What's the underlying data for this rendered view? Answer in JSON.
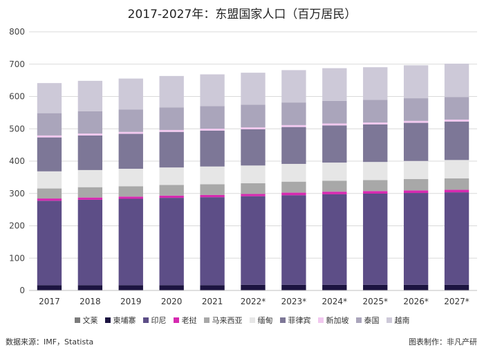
{
  "chart_data": {
    "type": "bar",
    "stacked": true,
    "title": "2017-2027年：东盟国家人口（百万居民）",
    "xlabel": "",
    "ylabel": "",
    "ylim": [
      0,
      800
    ],
    "yticks": [
      0,
      100,
      200,
      300,
      400,
      500,
      600,
      700,
      800
    ],
    "grid": true,
    "legend_position": "bottom",
    "categories": [
      "2017",
      "2018",
      "2019",
      "2020",
      "2021",
      "2022*",
      "2023*",
      "2024*",
      "2025*",
      "2026*",
      "2027*"
    ],
    "series": [
      {
        "name": "文莱",
        "color": "#7b7b7b",
        "values": [
          0.4,
          0.4,
          0.4,
          0.4,
          0.4,
          0.5,
          0.5,
          0.5,
          0.5,
          0.5,
          0.5
        ]
      },
      {
        "name": "柬埔寨",
        "color": "#1c1440",
        "values": [
          16,
          16,
          16,
          16,
          16,
          17,
          17,
          17,
          17,
          17,
          17
        ]
      },
      {
        "name": "印尼",
        "color": "#5d4e87",
        "values": [
          261,
          264,
          267,
          270,
          272,
          274,
          277,
          280,
          282,
          284,
          286
        ]
      },
      {
        "name": "老挝",
        "color": "#d62ab0",
        "values": [
          7,
          7,
          7,
          7,
          7,
          7,
          8,
          8,
          8,
          8,
          8
        ]
      },
      {
        "name": "马来西亚",
        "color": "#a8a8a8",
        "values": [
          31,
          32,
          32,
          33,
          33,
          33,
          34,
          34,
          34,
          35,
          35
        ]
      },
      {
        "name": "缅甸",
        "color": "#e6e6e6",
        "values": [
          53,
          53,
          54,
          54,
          55,
          55,
          55,
          56,
          56,
          56,
          57
        ]
      },
      {
        "name": "菲律宾",
        "color": "#7d7797",
        "values": [
          105,
          107,
          108,
          110,
          111,
          112,
          114,
          115,
          116,
          118,
          119
        ]
      },
      {
        "name": "新加坡",
        "color": "#f1c8ef",
        "values": [
          6,
          6,
          6,
          6,
          6,
          6,
          6,
          6,
          6,
          6,
          6
        ]
      },
      {
        "name": "泰国",
        "color": "#aaa5bb",
        "values": [
          69,
          69,
          69,
          70,
          70,
          70,
          70,
          70,
          70,
          70,
          70
        ]
      },
      {
        "name": "越南",
        "color": "#cdc9d8",
        "values": [
          93,
          94,
          96,
          97,
          98,
          99,
          100,
          101,
          101,
          102,
          103
        ]
      }
    ]
  },
  "footer": {
    "source": "数据来源：IMF，Statista",
    "credit": "图表制作：非凡产研"
  }
}
